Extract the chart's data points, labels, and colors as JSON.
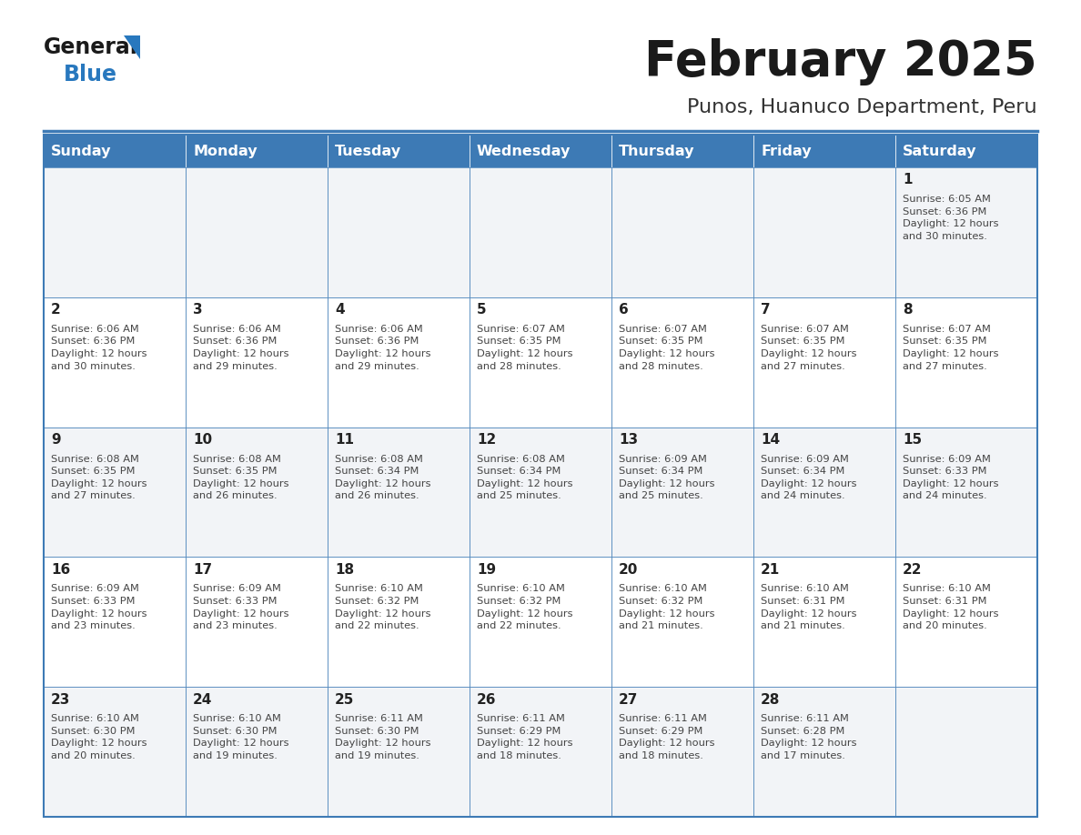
{
  "title": "February 2025",
  "subtitle": "Punos, Huanuco Department, Peru",
  "days_of_week": [
    "Sunday",
    "Monday",
    "Tuesday",
    "Wednesday",
    "Thursday",
    "Friday",
    "Saturday"
  ],
  "header_bg": "#3d7ab5",
  "header_text": "#ffffff",
  "cell_bg_light": "#f2f4f7",
  "cell_bg_white": "#ffffff",
  "cell_border_color": "#3d7ab5",
  "day_number_color": "#222222",
  "info_text_color": "#444444",
  "title_color": "#1a1a1a",
  "subtitle_color": "#333333",
  "logo_general_color": "#1a1a1a",
  "logo_blue_color": "#2878be",
  "logo_triangle_color": "#2878be",
  "weeks": [
    [
      {
        "day": null,
        "info": null
      },
      {
        "day": null,
        "info": null
      },
      {
        "day": null,
        "info": null
      },
      {
        "day": null,
        "info": null
      },
      {
        "day": null,
        "info": null
      },
      {
        "day": null,
        "info": null
      },
      {
        "day": "1",
        "info": "Sunrise: 6:05 AM\nSunset: 6:36 PM\nDaylight: 12 hours\nand 30 minutes."
      }
    ],
    [
      {
        "day": "2",
        "info": "Sunrise: 6:06 AM\nSunset: 6:36 PM\nDaylight: 12 hours\nand 30 minutes."
      },
      {
        "day": "3",
        "info": "Sunrise: 6:06 AM\nSunset: 6:36 PM\nDaylight: 12 hours\nand 29 minutes."
      },
      {
        "day": "4",
        "info": "Sunrise: 6:06 AM\nSunset: 6:36 PM\nDaylight: 12 hours\nand 29 minutes."
      },
      {
        "day": "5",
        "info": "Sunrise: 6:07 AM\nSunset: 6:35 PM\nDaylight: 12 hours\nand 28 minutes."
      },
      {
        "day": "6",
        "info": "Sunrise: 6:07 AM\nSunset: 6:35 PM\nDaylight: 12 hours\nand 28 minutes."
      },
      {
        "day": "7",
        "info": "Sunrise: 6:07 AM\nSunset: 6:35 PM\nDaylight: 12 hours\nand 27 minutes."
      },
      {
        "day": "8",
        "info": "Sunrise: 6:07 AM\nSunset: 6:35 PM\nDaylight: 12 hours\nand 27 minutes."
      }
    ],
    [
      {
        "day": "9",
        "info": "Sunrise: 6:08 AM\nSunset: 6:35 PM\nDaylight: 12 hours\nand 27 minutes."
      },
      {
        "day": "10",
        "info": "Sunrise: 6:08 AM\nSunset: 6:35 PM\nDaylight: 12 hours\nand 26 minutes."
      },
      {
        "day": "11",
        "info": "Sunrise: 6:08 AM\nSunset: 6:34 PM\nDaylight: 12 hours\nand 26 minutes."
      },
      {
        "day": "12",
        "info": "Sunrise: 6:08 AM\nSunset: 6:34 PM\nDaylight: 12 hours\nand 25 minutes."
      },
      {
        "day": "13",
        "info": "Sunrise: 6:09 AM\nSunset: 6:34 PM\nDaylight: 12 hours\nand 25 minutes."
      },
      {
        "day": "14",
        "info": "Sunrise: 6:09 AM\nSunset: 6:34 PM\nDaylight: 12 hours\nand 24 minutes."
      },
      {
        "day": "15",
        "info": "Sunrise: 6:09 AM\nSunset: 6:33 PM\nDaylight: 12 hours\nand 24 minutes."
      }
    ],
    [
      {
        "day": "16",
        "info": "Sunrise: 6:09 AM\nSunset: 6:33 PM\nDaylight: 12 hours\nand 23 minutes."
      },
      {
        "day": "17",
        "info": "Sunrise: 6:09 AM\nSunset: 6:33 PM\nDaylight: 12 hours\nand 23 minutes."
      },
      {
        "day": "18",
        "info": "Sunrise: 6:10 AM\nSunset: 6:32 PM\nDaylight: 12 hours\nand 22 minutes."
      },
      {
        "day": "19",
        "info": "Sunrise: 6:10 AM\nSunset: 6:32 PM\nDaylight: 12 hours\nand 22 minutes."
      },
      {
        "day": "20",
        "info": "Sunrise: 6:10 AM\nSunset: 6:32 PM\nDaylight: 12 hours\nand 21 minutes."
      },
      {
        "day": "21",
        "info": "Sunrise: 6:10 AM\nSunset: 6:31 PM\nDaylight: 12 hours\nand 21 minutes."
      },
      {
        "day": "22",
        "info": "Sunrise: 6:10 AM\nSunset: 6:31 PM\nDaylight: 12 hours\nand 20 minutes."
      }
    ],
    [
      {
        "day": "23",
        "info": "Sunrise: 6:10 AM\nSunset: 6:30 PM\nDaylight: 12 hours\nand 20 minutes."
      },
      {
        "day": "24",
        "info": "Sunrise: 6:10 AM\nSunset: 6:30 PM\nDaylight: 12 hours\nand 19 minutes."
      },
      {
        "day": "25",
        "info": "Sunrise: 6:11 AM\nSunset: 6:30 PM\nDaylight: 12 hours\nand 19 minutes."
      },
      {
        "day": "26",
        "info": "Sunrise: 6:11 AM\nSunset: 6:29 PM\nDaylight: 12 hours\nand 18 minutes."
      },
      {
        "day": "27",
        "info": "Sunrise: 6:11 AM\nSunset: 6:29 PM\nDaylight: 12 hours\nand 18 minutes."
      },
      {
        "day": "28",
        "info": "Sunrise: 6:11 AM\nSunset: 6:28 PM\nDaylight: 12 hours\nand 17 minutes."
      },
      {
        "day": null,
        "info": null
      }
    ]
  ]
}
